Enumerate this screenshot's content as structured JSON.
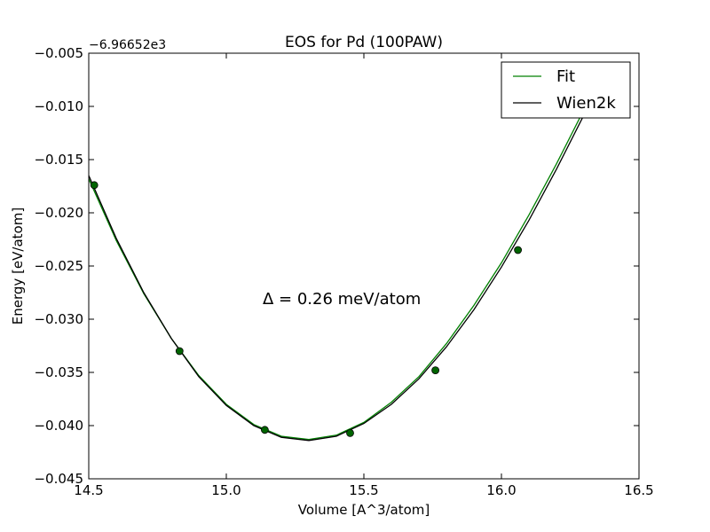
{
  "chart_data": {
    "type": "line",
    "title": "EOS for Pd (100PAW)",
    "xlabel": "Volume [A^3/atom]",
    "ylabel": "Energy [eV/atom]",
    "offset_label": "−6.96652e3",
    "annotation": "Δ = 0.26 meV/atom",
    "xlim": [
      14.5,
      16.5
    ],
    "ylim": [
      -0.045,
      -0.005
    ],
    "xticks": [
      14.5,
      15.0,
      15.5,
      16.0,
      16.5
    ],
    "xtick_labels": [
      "14.5",
      "15.0",
      "15.5",
      "16.0",
      "16.5"
    ],
    "yticks": [
      -0.045,
      -0.04,
      -0.035,
      -0.03,
      -0.025,
      -0.02,
      -0.015,
      -0.01,
      -0.005
    ],
    "ytick_labels": [
      "−0.045",
      "−0.040",
      "−0.035",
      "−0.030",
      "−0.025",
      "−0.020",
      "−0.015",
      "−0.010",
      "−0.005"
    ],
    "grid": false,
    "legend_position": "top-right",
    "points": {
      "x": [
        14.52,
        14.83,
        15.14,
        15.45,
        15.76,
        16.06
      ],
      "y": [
        -0.0174,
        -0.033,
        -0.0404,
        -0.0407,
        -0.0348,
        -0.0235
      ],
      "color": "#006400"
    },
    "series": [
      {
        "name": "Fit",
        "color": "#008000",
        "x": [
          14.5,
          14.6,
          14.7,
          14.8,
          14.9,
          15.0,
          15.1,
          15.2,
          15.3,
          15.4,
          15.5,
          15.6,
          15.7,
          15.8,
          15.9,
          16.0,
          16.1,
          16.2,
          16.3,
          16.32
        ],
        "y": [
          -0.0168,
          -0.0226,
          -0.0276,
          -0.0318,
          -0.0353,
          -0.038,
          -0.0399,
          -0.041,
          -0.0413,
          -0.0409,
          -0.0397,
          -0.0378,
          -0.0354,
          -0.0323,
          -0.0287,
          -0.0247,
          -0.0202,
          -0.0154,
          -0.0103,
          -0.0092
        ]
      },
      {
        "name": "Wien2k",
        "color": "#000000",
        "x": [
          14.5,
          14.6,
          14.7,
          14.8,
          14.9,
          15.0,
          15.1,
          15.2,
          15.3,
          15.4,
          15.5,
          15.6,
          15.7,
          15.8,
          15.9,
          16.0,
          16.1,
          16.2,
          16.3,
          16.34
        ],
        "y": [
          -0.0165,
          -0.0224,
          -0.0275,
          -0.0318,
          -0.0354,
          -0.0381,
          -0.04,
          -0.0411,
          -0.0414,
          -0.041,
          -0.0398,
          -0.038,
          -0.0356,
          -0.0326,
          -0.0291,
          -0.0251,
          -0.0207,
          -0.0159,
          -0.0108,
          -0.0087
        ]
      }
    ]
  }
}
